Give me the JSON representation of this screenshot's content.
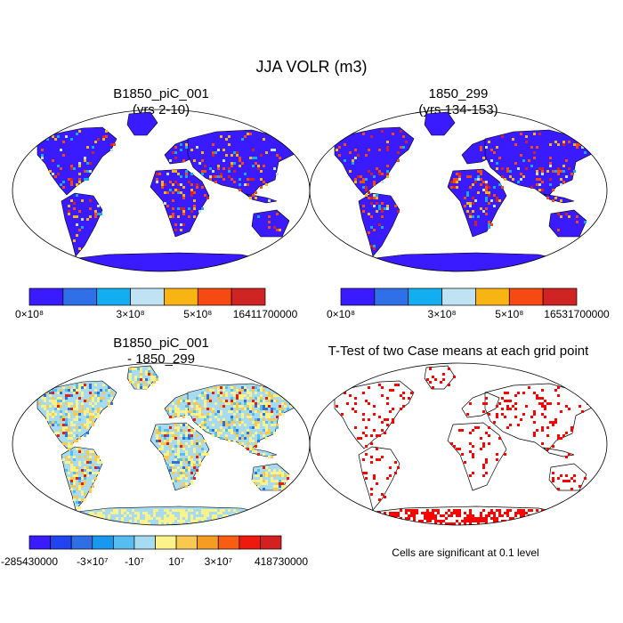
{
  "title": "JJA VOLR (m3)",
  "colors": {
    "land_fill": "#3a1aff",
    "significance": "#ff0000",
    "coast": "#000000",
    "cnt_palette": [
      "#3a1aff",
      "#2f6fe8",
      "#12aef0",
      "#bfe3f3",
      "#f7b412",
      "#f74a12",
      "#d02424"
    ],
    "diff_palette": [
      "#3a1aff",
      "#2243f0",
      "#2e6fe6",
      "#1899ef",
      "#55bdef",
      "#a7dbf1",
      "#fbf28a",
      "#f9c850",
      "#f79c22",
      "#f75e14",
      "#ee1a0e",
      "#d32020"
    ]
  },
  "chart_data": [
    {
      "type": "heatmap",
      "name": "panel-case1",
      "title": "B1850_piC_001",
      "subtitle": "(yrs 2-10)",
      "projection": "robinson",
      "colorbar": {
        "n_bins": 7,
        "labels": [
          {
            "text": "0×10⁸",
            "at_boundary": 0
          },
          {
            "text": "3×10⁸",
            "at_boundary": 3
          },
          {
            "text": "5×10⁸",
            "at_boundary": 5
          },
          {
            "text": "16411700000",
            "at_boundary": 7
          }
        ]
      }
    },
    {
      "type": "heatmap",
      "name": "panel-case2",
      "title": "1850_299",
      "subtitle": "(yrs 134-153)",
      "projection": "robinson",
      "colorbar": {
        "n_bins": 7,
        "labels": [
          {
            "text": "0×10⁸",
            "at_boundary": 0
          },
          {
            "text": "3×10⁸",
            "at_boundary": 3
          },
          {
            "text": "5×10⁸",
            "at_boundary": 5
          },
          {
            "text": "16531700000",
            "at_boundary": 7
          }
        ]
      }
    },
    {
      "type": "heatmap",
      "name": "panel-diff",
      "title": "B1850_piC_001",
      "subtitle": "- 1850_299",
      "projection": "robinson",
      "colorbar": {
        "n_bins": 12,
        "labels": [
          {
            "text": "-285430000",
            "at_boundary": 0
          },
          {
            "text": "-3×10⁷",
            "at_boundary": 3
          },
          {
            "text": "-10⁷",
            "at_boundary": 5
          },
          {
            "text": "10⁷",
            "at_boundary": 7
          },
          {
            "text": "3×10⁷",
            "at_boundary": 9
          },
          {
            "text": "418730000",
            "at_boundary": 12
          }
        ]
      }
    },
    {
      "type": "heatmap",
      "name": "panel-ttest",
      "title": "T-Test of two Case means at each grid point",
      "subtitle": "",
      "projection": "robinson",
      "note": "Cells are significant at 0.1 level"
    }
  ]
}
